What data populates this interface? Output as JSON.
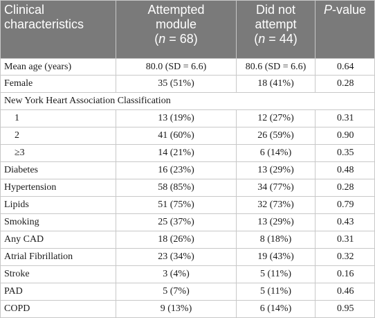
{
  "header": {
    "col1_line1": "Clinical",
    "col1_line2": "characteristics",
    "col2_line1": "Attempted",
    "col2_line2": "module",
    "col2_n_label": "n",
    "col2_n_value": " = 68)",
    "col3_line1": "Did not",
    "col3_line2": "attempt",
    "col3_n_label": "n",
    "col3_n_value": " = 44)",
    "col4_p": "P",
    "col4_rest": "-value"
  },
  "rows": [
    {
      "label": "Mean age (years)",
      "attempted": "80.0 (SD = 6.6)",
      "not_attempted": "80.6 (SD = 6.6)",
      "p": "0.64"
    },
    {
      "label": "Female",
      "attempted": "35 (51%)",
      "not_attempted": "18 (41%)",
      "p": "0.28"
    },
    {
      "section": "New York Heart Association Classification"
    },
    {
      "label": "1",
      "attempted": "13 (19%)",
      "not_attempted": "12 (27%)",
      "p": "0.31"
    },
    {
      "label": "2",
      "attempted": "41 (60%)",
      "not_attempted": "26 (59%)",
      "p": "0.90"
    },
    {
      "label": "≥3",
      "attempted": "14 (21%)",
      "not_attempted": "6 (14%)",
      "p": "0.35"
    },
    {
      "label": "Diabetes",
      "attempted": "16 (23%)",
      "not_attempted": "13 (29%)",
      "p": "0.48"
    },
    {
      "label": "Hypertension",
      "attempted": "58 (85%)",
      "not_attempted": "34 (77%)",
      "p": "0.28"
    },
    {
      "label": "Lipids",
      "attempted": "51 (75%)",
      "not_attempted": "32 (73%)",
      "p": "0.79"
    },
    {
      "label": "Smoking",
      "attempted": "25 (37%)",
      "not_attempted": "13 (29%)",
      "p": "0.43"
    },
    {
      "label": "Any CAD",
      "attempted": "18 (26%)",
      "not_attempted": "8 (18%)",
      "p": "0.31"
    },
    {
      "label": "Atrial Fibrillation",
      "attempted": "23 (34%)",
      "not_attempted": "19 (43%)",
      "p": "0.32"
    },
    {
      "label": "Stroke",
      "attempted": "3 (4%)",
      "not_attempted": "5 (11%)",
      "p": "0.16"
    },
    {
      "label": "PAD",
      "attempted": "5 (7%)",
      "not_attempted": "5 (11%)",
      "p": "0.46"
    },
    {
      "label": "COPD",
      "attempted": "9 (13%)",
      "not_attempted": "6 (14%)",
      "p": "0.95"
    }
  ]
}
